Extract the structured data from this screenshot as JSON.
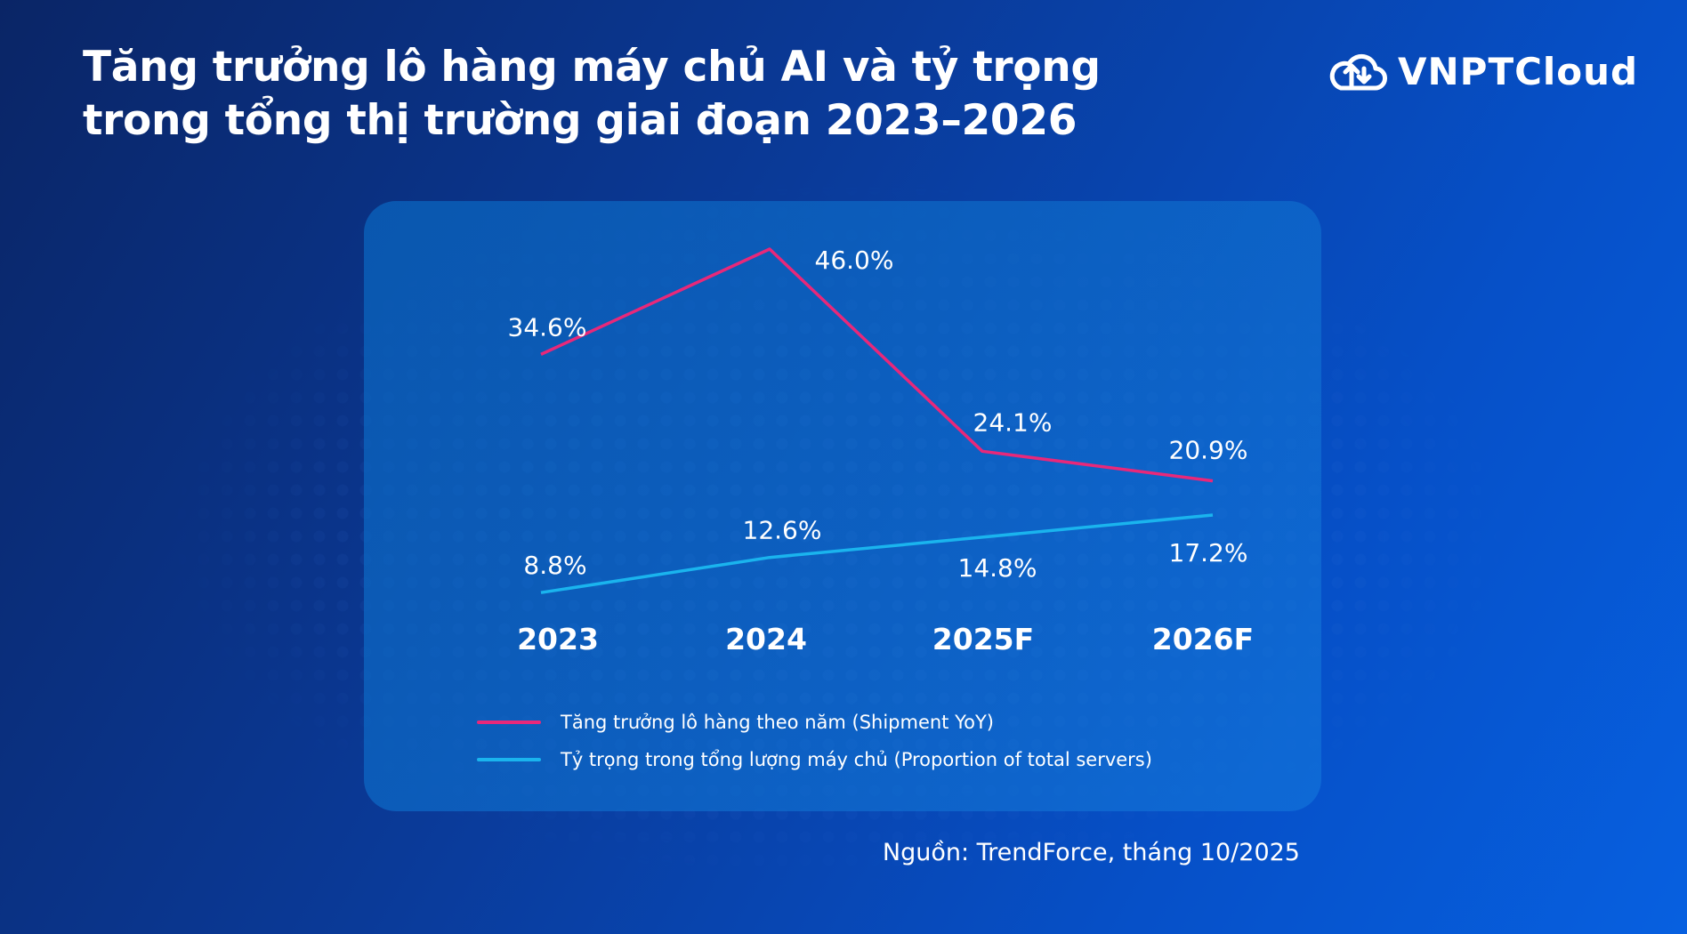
{
  "title_lines": [
    "Tăng trưởng lô hàng máy chủ AI và tỷ trọng",
    "trong tổng thị trường giai đoạn 2023–2026"
  ],
  "logo": {
    "text": "VNPTCloud",
    "icon": "cloud-upload-download-icon"
  },
  "source": "Nguồn: TrendForce, tháng 10/2025",
  "colors": {
    "shipment": "#e8287a",
    "proportion": "#1ab4ee",
    "background": "#0a3a98"
  },
  "chart_data": {
    "type": "line",
    "categories": [
      "2023",
      "2024",
      "2025F",
      "2026F"
    ],
    "series": [
      {
        "name": "Tăng trưởng lô hàng theo năm (Shipment YoY)",
        "values": [
          34.6,
          46.0,
          24.1,
          20.9
        ],
        "labels": [
          "34.6%",
          "46.0%",
          "24.1%",
          "20.9%"
        ],
        "color": "#e8287a"
      },
      {
        "name": "Tỷ trọng trong tổng lượng máy chủ (Proportion of total servers)",
        "values": [
          8.8,
          12.6,
          14.8,
          17.2
        ],
        "labels": [
          "8.8%",
          "12.6%",
          "14.8%",
          "17.2%"
        ],
        "color": "#1ab4ee"
      }
    ],
    "unit": "%",
    "grid": false,
    "legend": "bottom"
  }
}
